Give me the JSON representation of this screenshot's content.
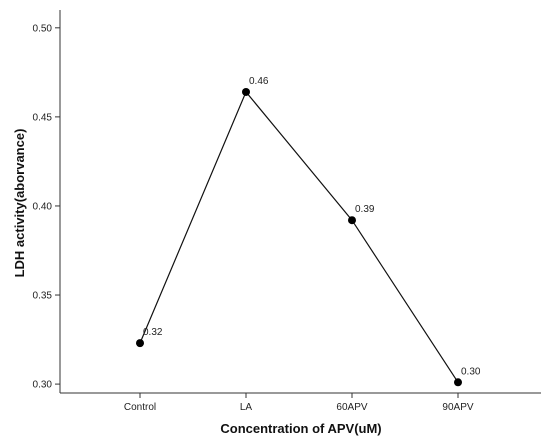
{
  "chart_data": {
    "type": "line",
    "categories": [
      "Control",
      "LA",
      "60APV",
      "90APV"
    ],
    "series": [
      {
        "values": [
          0.323,
          0.464,
          0.392,
          0.301
        ]
      }
    ],
    "data_labels": [
      "0.32",
      "0.46",
      "0.39",
      "0.30"
    ],
    "xlabel": "Concentration of APV(uM)",
    "ylabel": "LDH activity(aborvance)",
    "ylim": [
      0.295,
      0.51
    ],
    "yticks": [
      0.3,
      0.35,
      0.4,
      0.45,
      0.5
    ],
    "ytick_labels": [
      "0.30",
      "0.35",
      "0.40",
      "0.45",
      "0.50"
    ],
    "grid": false,
    "legend": "none"
  }
}
